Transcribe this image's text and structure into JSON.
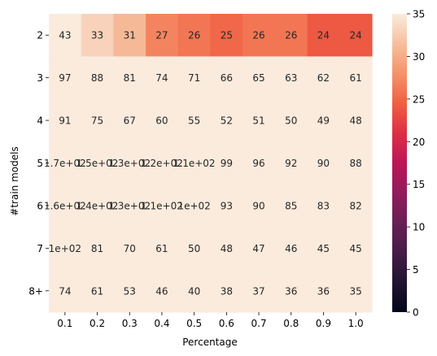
{
  "chart_data": {
    "type": "heatmap",
    "xlabel": "Percentage",
    "ylabel": "#train models",
    "x_categories": [
      "0.1",
      "0.2",
      "0.3",
      "0.4",
      "0.5",
      "0.6",
      "0.7",
      "0.8",
      "0.9",
      "1.0"
    ],
    "y_categories": [
      "2",
      "3",
      "4",
      "5",
      "6",
      "7",
      "8+"
    ],
    "values": [
      [
        43,
        33,
        31,
        27,
        26,
        25,
        26,
        26,
        24,
        24
      ],
      [
        97,
        88,
        81,
        74,
        71,
        66,
        65,
        63,
        62,
        61
      ],
      [
        91,
        75,
        67,
        60,
        55,
        52,
        51,
        50,
        49,
        48
      ],
      [
        170,
        150,
        130,
        120,
        110,
        99,
        96,
        92,
        90,
        88
      ],
      [
        160,
        140,
        130,
        110,
        100,
        93,
        90,
        85,
        83,
        82
      ],
      [
        100,
        81,
        70,
        61,
        50,
        48,
        47,
        46,
        45,
        45
      ],
      [
        74,
        61,
        53,
        46,
        40,
        38,
        37,
        36,
        36,
        35
      ]
    ],
    "annotations": [
      [
        "43",
        "33",
        "31",
        "27",
        "26",
        "25",
        "26",
        "26",
        "24",
        "24"
      ],
      [
        "97",
        "88",
        "81",
        "74",
        "71",
        "66",
        "65",
        "63",
        "62",
        "61"
      ],
      [
        "91",
        "75",
        "67",
        "60",
        "55",
        "52",
        "51",
        "50",
        "49",
        "48"
      ],
      [
        "1.7e+02",
        "1.5e+02",
        "1.3e+02",
        "1.2e+02",
        "1.1e+02",
        "99",
        "96",
        "92",
        "90",
        "88"
      ],
      [
        "1.6e+02",
        "1.4e+02",
        "1.3e+02",
        "1.1e+02",
        "1e+02",
        "93",
        "90",
        "85",
        "83",
        "82"
      ],
      [
        "1e+02",
        "81",
        "70",
        "61",
        "50",
        "48",
        "47",
        "46",
        "45",
        "45"
      ],
      [
        "74",
        "61",
        "53",
        "46",
        "40",
        "38",
        "37",
        "36",
        "36",
        "35"
      ]
    ],
    "color_range": [
      0,
      35
    ],
    "colorbar_ticks": [
      "0",
      "5",
      "10",
      "15",
      "20",
      "25",
      "30",
      "35"
    ],
    "colormap": "rocket",
    "grid": false
  }
}
